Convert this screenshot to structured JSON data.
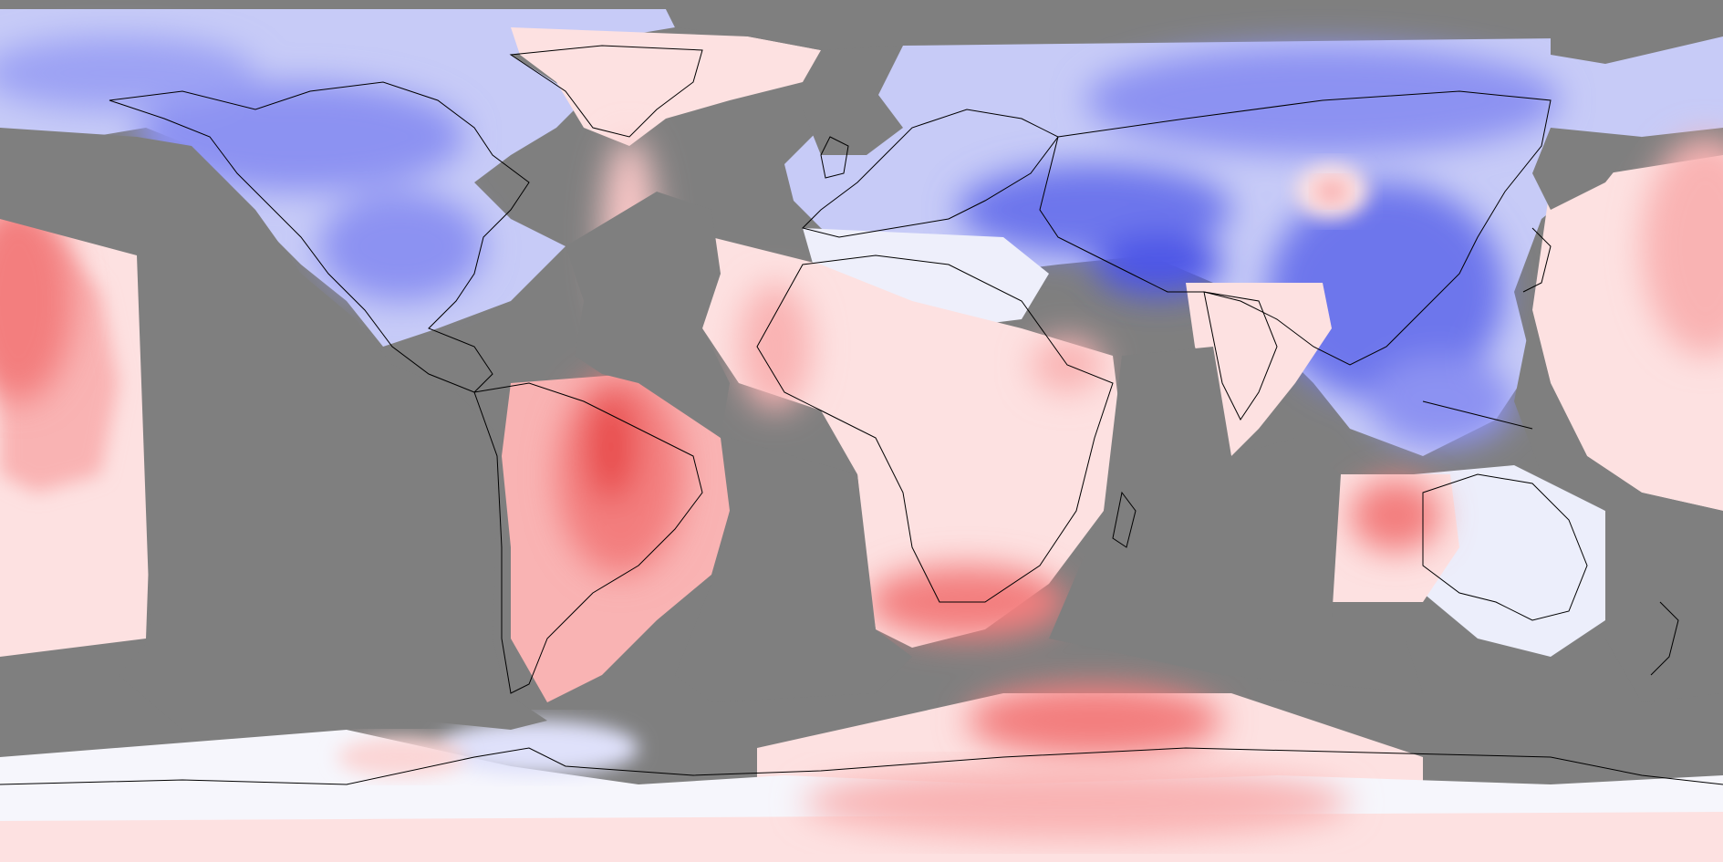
{
  "map": {
    "projection": "equirectangular",
    "extent": {
      "lon": [
        -180,
        180
      ],
      "lat": [
        -90,
        90
      ]
    },
    "no_data_color": "#7f7f7f",
    "coastline_color": "#000000",
    "palette": {
      "strong_cold": "#4d57e6",
      "cold": "#8c92f2",
      "cool": "#c7cbf7",
      "neutral": "#f6f6fc",
      "mild_warm": "#fde1e1",
      "warm": "#f9b3b3",
      "hot": "#f37e7e",
      "strong_hot": "#e84c4c"
    },
    "legend": null
  }
}
